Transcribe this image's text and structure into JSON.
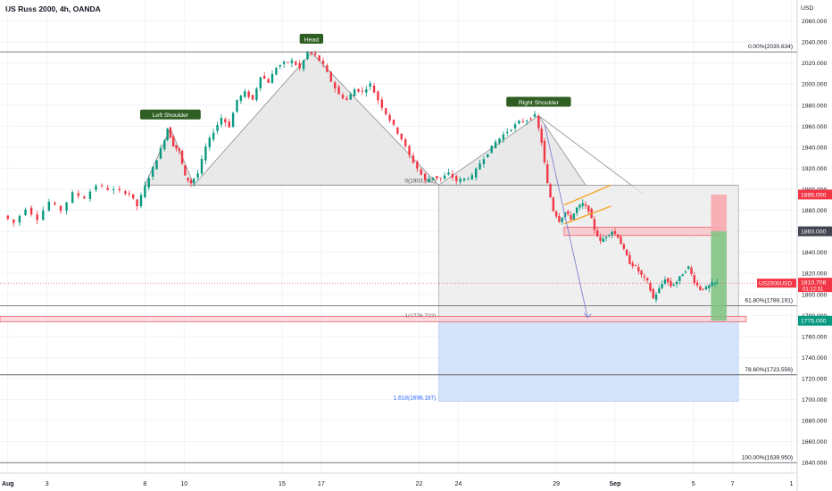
{
  "header": {
    "title": "US Russ 2000, 4h, OANDA"
  },
  "colors": {
    "up": "#089981",
    "down": "#f23645",
    "grid": "#f0f3fa",
    "axis_text": "#131722",
    "pattern_fill": "#e9e9e9",
    "blue_zone": "#d6e4fb",
    "blue_text": "#2962ff",
    "stop_zone": "#f7a9ae",
    "target_zone": "#7cc27e",
    "channel": "#f5a623",
    "label_bg": "#2e5e22",
    "arrow": "#7b7fd1"
  },
  "chart_data": {
    "type": "candlestick",
    "symbol": "US2000USD",
    "timeframe": "4h",
    "y_axis": {
      "unit_label": "USD",
      "ticks": [
        "2060.000",
        "2040.000",
        "2020.000",
        "2000.000",
        "1980.000",
        "1960.000",
        "1940.000",
        "1920.000",
        "1900.000",
        "1880.000",
        "1860.000",
        "1840.000",
        "1820.000",
        "1800.000",
        "1780.000",
        "1760.000",
        "1740.000",
        "1720.000",
        "1700.000",
        "1680.000",
        "1660.000",
        "1640.000"
      ],
      "tick_values": [
        2060,
        2040,
        2020,
        2000,
        1980,
        1960,
        1940,
        1920,
        1900,
        1880,
        1860,
        1840,
        1820,
        1800,
        1780,
        1760,
        1740,
        1720,
        1700,
        1680,
        1660,
        1640
      ],
      "range": [
        1630,
        2080
      ]
    },
    "x_axis": {
      "ticks": [
        {
          "label": "Aug",
          "day": 1
        },
        {
          "label": "3",
          "day": 3
        },
        {
          "label": "8",
          "day": 8
        },
        {
          "label": "10",
          "day": 10
        },
        {
          "label": "15",
          "day": 15
        },
        {
          "label": "17",
          "day": 17
        },
        {
          "label": "22",
          "day": 22
        },
        {
          "label": "24",
          "day": 24
        },
        {
          "label": "29",
          "day": 29
        },
        {
          "label": "Sep",
          "day": 32
        },
        {
          "label": "5",
          "day": 36
        },
        {
          "label": "7",
          "day": 38
        },
        {
          "label": "1",
          "day": 41
        }
      ],
      "range_days": [
        0.6,
        41.3
      ]
    },
    "price_path": [
      [
        1.0,
        1875
      ],
      [
        1.6,
        1868
      ],
      [
        2.2,
        1882
      ],
      [
        2.8,
        1872
      ],
      [
        3.4,
        1888
      ],
      [
        4.0,
        1880
      ],
      [
        4.6,
        1896
      ],
      [
        5.2,
        1892
      ],
      [
        5.8,
        1904
      ],
      [
        6.4,
        1900
      ],
      [
        7.0,
        1898
      ],
      [
        7.4,
        1896
      ],
      [
        7.8,
        1884
      ],
      [
        8.2,
        1903
      ],
      [
        8.6,
        1920
      ],
      [
        9.0,
        1938
      ],
      [
        9.3,
        1958
      ],
      [
        9.6,
        1942
      ],
      [
        9.9,
        1936
      ],
      [
        10.2,
        1912
      ],
      [
        10.5,
        1906
      ],
      [
        10.9,
        1915
      ],
      [
        11.3,
        1940
      ],
      [
        11.7,
        1955
      ],
      [
        12.1,
        1968
      ],
      [
        12.5,
        1960
      ],
      [
        12.9,
        1985
      ],
      [
        13.3,
        1992
      ],
      [
        13.7,
        1985
      ],
      [
        14.1,
        2008
      ],
      [
        14.5,
        2002
      ],
      [
        14.9,
        2016
      ],
      [
        15.3,
        2020
      ],
      [
        15.7,
        2022
      ],
      [
        16.1,
        2015
      ],
      [
        16.5,
        2030
      ],
      [
        16.9,
        2027
      ],
      [
        17.3,
        2018
      ],
      [
        17.7,
        2003
      ],
      [
        18.1,
        1990
      ],
      [
        18.5,
        1985
      ],
      [
        18.9,
        1995
      ],
      [
        19.3,
        1993
      ],
      [
        19.7,
        2000
      ],
      [
        20.1,
        1985
      ],
      [
        20.5,
        1972
      ],
      [
        20.9,
        1960
      ],
      [
        21.3,
        1948
      ],
      [
        21.7,
        1932
      ],
      [
        22.1,
        1920
      ],
      [
        22.5,
        1908
      ],
      [
        22.9,
        1912
      ],
      [
        23.3,
        1910
      ],
      [
        23.7,
        1915
      ],
      [
        24.1,
        1908
      ],
      [
        24.5,
        1910
      ],
      [
        24.9,
        1912
      ],
      [
        25.3,
        1925
      ],
      [
        25.7,
        1935
      ],
      [
        26.1,
        1945
      ],
      [
        26.5,
        1952
      ],
      [
        26.9,
        1958
      ],
      [
        27.3,
        1964
      ],
      [
        27.7,
        1966
      ],
      [
        28.1,
        1970
      ],
      [
        28.4,
        1945
      ],
      [
        28.7,
        1905
      ],
      [
        29.0,
        1880
      ],
      [
        29.3,
        1870
      ],
      [
        29.6,
        1878
      ],
      [
        29.9,
        1872
      ],
      [
        30.2,
        1882
      ],
      [
        30.5,
        1886
      ],
      [
        30.8,
        1880
      ],
      [
        31.1,
        1862
      ],
      [
        31.4,
        1850
      ],
      [
        31.7,
        1856
      ],
      [
        32.0,
        1860
      ],
      [
        32.3,
        1855
      ],
      [
        32.6,
        1842
      ],
      [
        32.9,
        1830
      ],
      [
        33.2,
        1826
      ],
      [
        33.5,
        1818
      ],
      [
        33.8,
        1812
      ],
      [
        34.1,
        1796
      ],
      [
        34.4,
        1805
      ],
      [
        34.7,
        1815
      ],
      [
        35.0,
        1808
      ],
      [
        35.3,
        1812
      ],
      [
        35.6,
        1820
      ],
      [
        35.9,
        1826
      ],
      [
        36.2,
        1812
      ],
      [
        36.5,
        1805
      ],
      [
        36.8,
        1806
      ],
      [
        37.1,
        1810
      ],
      [
        37.3,
        1810.7
      ]
    ],
    "current_price": {
      "symbol": "US2000USD",
      "value": 1810.708,
      "value_label": "1810.708",
      "countdown": "01:12:31"
    },
    "price_labels": [
      {
        "value": 1895,
        "label": "1895.000",
        "kind": "stop"
      },
      {
        "value": 1860,
        "label": "1860.000",
        "kind": "level"
      },
      {
        "value": 1775,
        "label": "1775.000",
        "kind": "target"
      }
    ],
    "fibonacci": [
      {
        "level": "0.00%",
        "value": 2030.634,
        "text": "0.00%(2030.634)"
      },
      {
        "level": "61.80%",
        "value": 1789.191,
        "text": "61.80%(1789.191)"
      },
      {
        "level": "78.60%",
        "value": 1723.556,
        "text": "78.60%(1723.556)"
      },
      {
        "level": "100.00%",
        "value": 1639.95,
        "text": "100.00%(1639.950)"
      }
    ],
    "projection": [
      {
        "text": "0(1903.802)",
        "value": 1903.802
      },
      {
        "text": "1(1776.722)",
        "value": 1776.722
      },
      {
        "text": "1.618(1698.187)",
        "value": 1698.187
      }
    ],
    "pattern_labels": [
      {
        "text": "Left Shoulder",
        "day": 9.3,
        "value": 1958
      },
      {
        "text": "Head",
        "day": 16.5,
        "value": 2030
      },
      {
        "text": "Right Shoulder",
        "day": 28.1,
        "value": 1970
      }
    ],
    "pattern_points": [
      [
        8.0,
        1904
      ],
      [
        9.3,
        1958
      ],
      [
        10.5,
        1904
      ],
      [
        16.5,
        2030
      ],
      [
        23.0,
        1904
      ],
      [
        28.1,
        1970
      ],
      [
        30.5,
        1904
      ]
    ],
    "neckline": {
      "value": 1903.802,
      "day_from": 10.5,
      "day_to": 38.3
    },
    "target_box": {
      "day_from": 23.0,
      "day_to": 38.3,
      "top": 1903.802,
      "mid": 1776.722,
      "bottom": 1698.187
    },
    "resistance_zone": {
      "day_from": 29.4,
      "day_to": 37.3,
      "top": 1864,
      "bottom": 1856
    },
    "support_zone": {
      "day_from": 0.6,
      "day_to": 38.7,
      "top": 1779,
      "bottom": 1774
    },
    "channel": {
      "upper": [
        [
          29.4,
          1885
        ],
        [
          31.8,
          1904
        ]
      ],
      "lower": [
        [
          29.4,
          1867
        ],
        [
          31.8,
          1884
        ]
      ]
    },
    "drop_arrow": {
      "from": [
        28.4,
        1962
      ],
      "to": [
        30.6,
        1778
      ]
    },
    "trade_box": {
      "day_from": 36.9,
      "day_to": 37.7,
      "entry": 1860,
      "stop": 1895,
      "target": 1775
    }
  }
}
